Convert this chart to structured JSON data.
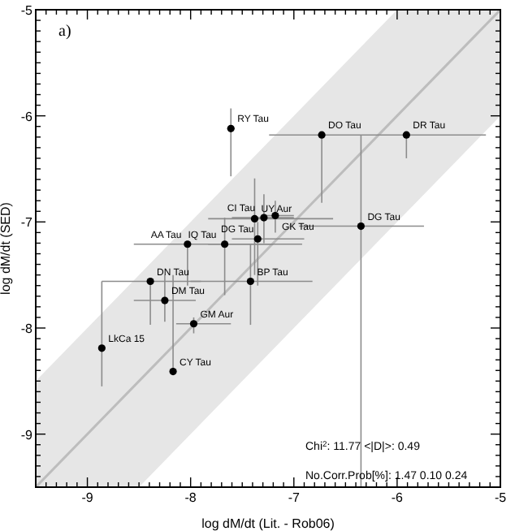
{
  "chart_data": {
    "type": "scatter",
    "xlabel": "log dM/dt (Lit. - Rob06)",
    "ylabel": "log dM/dt (SED)",
    "xlim": [
      -9.5,
      -5
    ],
    "ylim": [
      -9.5,
      -5
    ],
    "xticks": [
      {
        "value": -9.4,
        "label": null
      },
      {
        "value": -9.3,
        "label": null
      },
      {
        "value": -9.2,
        "label": null
      },
      {
        "value": -9.1,
        "label": null
      },
      -9,
      {
        "value": -8.9,
        "label": null
      },
      {
        "value": -8.8,
        "label": null
      },
      {
        "value": -8.7,
        "label": null
      },
      {
        "value": -8.6,
        "label": null
      },
      {
        "value": -8.5,
        "label": null
      },
      {
        "value": -8.4,
        "label": null
      },
      {
        "value": -8.3,
        "label": null
      },
      {
        "value": -8.2,
        "label": null
      },
      {
        "value": -8.1,
        "label": null
      },
      -8,
      {
        "value": -7.9,
        "label": null
      },
      {
        "value": -7.8,
        "label": null
      },
      {
        "value": -7.7,
        "label": null
      },
      {
        "value": -7.6,
        "label": null
      },
      {
        "value": -7.5,
        "label": null
      },
      {
        "value": -7.4,
        "label": null
      },
      {
        "value": -7.3,
        "label": null
      },
      {
        "value": -7.2,
        "label": null
      },
      {
        "value": -7.1,
        "label": null
      },
      -7,
      {
        "value": -6.9,
        "label": null
      },
      {
        "value": -6.8,
        "label": null
      },
      {
        "value": -6.7,
        "label": null
      },
      {
        "value": -6.6,
        "label": null
      },
      {
        "value": -6.5,
        "label": null
      },
      {
        "value": -6.4,
        "label": null
      },
      {
        "value": -6.3,
        "label": null
      },
      {
        "value": -6.2,
        "label": null
      },
      {
        "value": -6.1,
        "label": null
      },
      -6,
      {
        "value": -5.9,
        "label": null
      },
      {
        "value": -5.8,
        "label": null
      },
      {
        "value": -5.7,
        "label": null
      },
      {
        "value": -5.6,
        "label": null
      },
      {
        "value": -5.5,
        "label": null
      },
      {
        "value": -5.4,
        "label": null
      },
      {
        "value": -5.3,
        "label": null
      },
      {
        "value": -5.2,
        "label": null
      },
      {
        "value": -5.1,
        "label": null
      },
      -5
    ],
    "yticks": [
      {
        "value": -9.4,
        "label": null
      },
      {
        "value": -9.3,
        "label": null
      },
      {
        "value": -9.2,
        "label": null
      },
      {
        "value": -9.1,
        "label": null
      },
      -9,
      {
        "value": -8.9,
        "label": null
      },
      {
        "value": -8.8,
        "label": null
      },
      {
        "value": -8.7,
        "label": null
      },
      {
        "value": -8.6,
        "label": null
      },
      {
        "value": -8.5,
        "label": null
      },
      {
        "value": -8.4,
        "label": null
      },
      {
        "value": -8.3,
        "label": null
      },
      {
        "value": -8.2,
        "label": null
      },
      {
        "value": -8.1,
        "label": null
      },
      -8,
      {
        "value": -7.9,
        "label": null
      },
      {
        "value": -7.8,
        "label": null
      },
      {
        "value": -7.7,
        "label": null
      },
      {
        "value": -7.6,
        "label": null
      },
      {
        "value": -7.5,
        "label": null
      },
      {
        "value": -7.4,
        "label": null
      },
      {
        "value": -7.3,
        "label": null
      },
      {
        "value": -7.2,
        "label": null
      },
      {
        "value": -7.1,
        "label": null
      },
      -7,
      {
        "value": -6.9,
        "label": null
      },
      {
        "value": -6.8,
        "label": null
      },
      {
        "value": -6.7,
        "label": null
      },
      {
        "value": -6.6,
        "label": null
      },
      {
        "value": -6.5,
        "label": null
      },
      {
        "value": -6.4,
        "label": null
      },
      {
        "value": -6.3,
        "label": null
      },
      {
        "value": -6.2,
        "label": null
      },
      {
        "value": -6.1,
        "label": null
      },
      -6,
      {
        "value": -5.9,
        "label": null
      },
      {
        "value": -5.8,
        "label": null
      },
      {
        "value": -5.7,
        "label": null
      },
      {
        "value": -5.6,
        "label": null
      },
      {
        "value": -5.5,
        "label": null
      },
      {
        "value": -5.4,
        "label": null
      },
      {
        "value": -5.3,
        "label": null
      },
      {
        "value": -5.2,
        "label": null
      },
      {
        "value": -5.1,
        "label": null
      },
      -5
    ],
    "grid": false,
    "marker": "circle",
    "series": [
      {
        "type": "line",
        "marker": "none",
        "color": "#bdbdbd",
        "x": [
          -9.5,
          -8.5,
          -6,
          -5
        ],
        "values": [
          -9.5,
          -8.5,
          -6,
          -5
        ],
        "lower": [
          -9.5,
          -9.5,
          -7,
          -6
        ],
        "upper": [
          -8.5,
          -7.5,
          -5,
          -5
        ]
      },
      {
        "type": "scatter",
        "color": "#000000",
        "x": [
          -7.61,
          -6.73,
          -5.91,
          -6.35,
          -7.38,
          -7.29,
          -7.18,
          -7.35,
          -8.03,
          -7.67,
          -7.42,
          -8.39,
          -8.25,
          -7.97,
          -8.86,
          -8.17
        ],
        "values": [
          -6.12,
          -6.18,
          -6.18,
          -7.04,
          -6.97,
          -6.96,
          -6.94,
          -7.16,
          -7.21,
          -7.21,
          -7.56,
          -7.56,
          -7.74,
          -7.96,
          -8.19,
          -8.41
        ],
        "errors": [
          [
            -6.57,
            -5.93
          ],
          [
            -6.82,
            -6.18
          ],
          [
            -6.4,
            -6.18
          ],
          [
            -9.5,
            -6.18
          ],
          [
            -7.5,
            -6.59
          ],
          [
            -7.2,
            -6.74
          ],
          [
            -7.1,
            -6.8
          ],
          [
            -7.6,
            -7.0
          ],
          [
            -7.6,
            -7.21
          ],
          [
            -7.69,
            -6.96
          ],
          [
            -7.97,
            -7.21
          ],
          [
            -7.97,
            -7.56
          ],
          [
            -7.94,
            -7.5
          ],
          [
            -8.05,
            -7.9
          ],
          [
            -8.55,
            -7.56
          ],
          [
            -8.41,
            -7.5
          ]
        ],
        "xerrors": [
          null,
          [
            -7.24,
            -6.73
          ],
          [
            -6.73,
            -5.14
          ],
          [
            -6.95,
            -5.74
          ],
          [
            -7.83,
            -6.62
          ],
          [
            -7.6,
            -7.0
          ],
          [
            -7.3,
            -7.0
          ],
          [
            -7.6,
            -6.9
          ],
          [
            -8.55,
            -6.92
          ],
          [
            -7.83,
            -7.2
          ],
          [
            -8.0,
            -6.82
          ],
          [
            -8.86,
            -7.9
          ],
          [
            -8.55,
            -7.95
          ],
          [
            -8.14,
            -7.61
          ],
          null,
          null
        ]
      }
    ],
    "annotations": [
      "a)",
      "Chi$^{2}$: 11.77    <|D|>: 0.49",
      "No.Corr.Prob[%]:  1.47  0.10  0.24",
      {
        "text": "RY Tau",
        "x": -7.61,
        "y": -6.12
      },
      {
        "text": "DO Tau",
        "x": -6.73,
        "y": -6.18
      },
      {
        "text": "DR Tau",
        "x": -5.91,
        "y": -6.18
      },
      {
        "text": "DG Tau",
        "x": -6.35,
        "y": -7.04
      },
      {
        "text": "UY Aur",
        "x": -7.38,
        "y": -6.97
      },
      {
        "text": "CI Tau",
        "x": -7.29,
        "y": -6.96
      },
      {
        "text": "GK Tau",
        "x": -7.18,
        "y": -6.94
      },
      {
        "text": "DG Tau",
        "x": -7.35,
        "y": -7.16
      },
      {
        "text": "AA Tau",
        "x": -8.03,
        "y": -7.21
      },
      {
        "text": "IQ Tau",
        "x": -7.67,
        "y": -7.21
      },
      {
        "text": "BP Tau",
        "x": -7.42,
        "y": -7.56
      },
      {
        "text": "DN Tau",
        "x": -8.39,
        "y": -7.56
      },
      {
        "text": "DM Tau",
        "x": -8.25,
        "y": -7.74
      },
      {
        "text": "GM Aur",
        "x": -7.97,
        "y": -7.96
      },
      {
        "text": "LkCa 15",
        "x": -8.86,
        "y": -8.19
      },
      {
        "text": "CY Tau",
        "x": -8.17,
        "y": -8.41
      }
    ]
  }
}
